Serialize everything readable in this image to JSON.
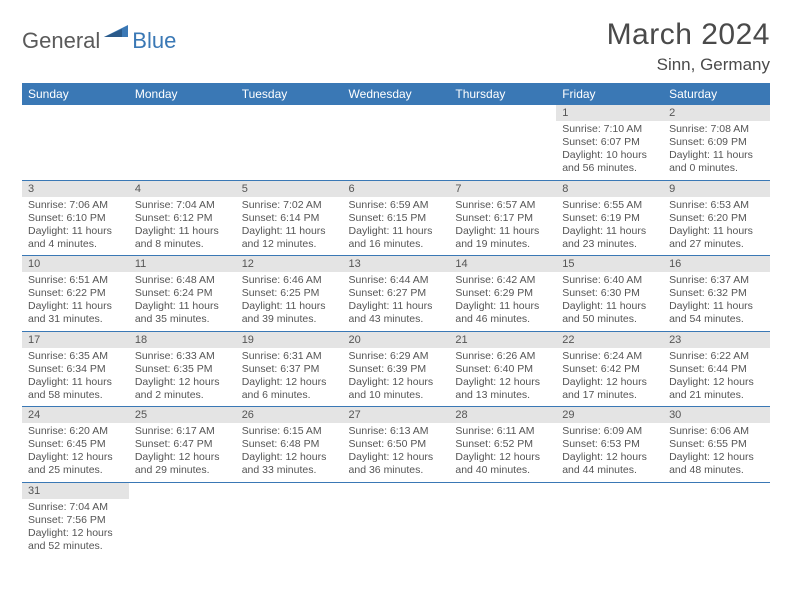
{
  "logo": {
    "general": "General",
    "blue": "Blue"
  },
  "header": {
    "title": "March 2024",
    "location": "Sinn, Germany"
  },
  "colors": {
    "header_bg": "#3a78b5",
    "header_text": "#ffffff",
    "daynum_bg": "#e4e4e4",
    "cell_border": "#3a78b5",
    "body_text": "#555555",
    "title_text": "#4a4a4a"
  },
  "columns": [
    "Sunday",
    "Monday",
    "Tuesday",
    "Wednesday",
    "Thursday",
    "Friday",
    "Saturday"
  ],
  "weeks": [
    [
      null,
      null,
      null,
      null,
      null,
      {
        "n": "1",
        "sunrise": "Sunrise: 7:10 AM",
        "sunset": "Sunset: 6:07 PM",
        "daylight": "Daylight: 10 hours and 56 minutes."
      },
      {
        "n": "2",
        "sunrise": "Sunrise: 7:08 AM",
        "sunset": "Sunset: 6:09 PM",
        "daylight": "Daylight: 11 hours and 0 minutes."
      }
    ],
    [
      {
        "n": "3",
        "sunrise": "Sunrise: 7:06 AM",
        "sunset": "Sunset: 6:10 PM",
        "daylight": "Daylight: 11 hours and 4 minutes."
      },
      {
        "n": "4",
        "sunrise": "Sunrise: 7:04 AM",
        "sunset": "Sunset: 6:12 PM",
        "daylight": "Daylight: 11 hours and 8 minutes."
      },
      {
        "n": "5",
        "sunrise": "Sunrise: 7:02 AM",
        "sunset": "Sunset: 6:14 PM",
        "daylight": "Daylight: 11 hours and 12 minutes."
      },
      {
        "n": "6",
        "sunrise": "Sunrise: 6:59 AM",
        "sunset": "Sunset: 6:15 PM",
        "daylight": "Daylight: 11 hours and 16 minutes."
      },
      {
        "n": "7",
        "sunrise": "Sunrise: 6:57 AM",
        "sunset": "Sunset: 6:17 PM",
        "daylight": "Daylight: 11 hours and 19 minutes."
      },
      {
        "n": "8",
        "sunrise": "Sunrise: 6:55 AM",
        "sunset": "Sunset: 6:19 PM",
        "daylight": "Daylight: 11 hours and 23 minutes."
      },
      {
        "n": "9",
        "sunrise": "Sunrise: 6:53 AM",
        "sunset": "Sunset: 6:20 PM",
        "daylight": "Daylight: 11 hours and 27 minutes."
      }
    ],
    [
      {
        "n": "10",
        "sunrise": "Sunrise: 6:51 AM",
        "sunset": "Sunset: 6:22 PM",
        "daylight": "Daylight: 11 hours and 31 minutes."
      },
      {
        "n": "11",
        "sunrise": "Sunrise: 6:48 AM",
        "sunset": "Sunset: 6:24 PM",
        "daylight": "Daylight: 11 hours and 35 minutes."
      },
      {
        "n": "12",
        "sunrise": "Sunrise: 6:46 AM",
        "sunset": "Sunset: 6:25 PM",
        "daylight": "Daylight: 11 hours and 39 minutes."
      },
      {
        "n": "13",
        "sunrise": "Sunrise: 6:44 AM",
        "sunset": "Sunset: 6:27 PM",
        "daylight": "Daylight: 11 hours and 43 minutes."
      },
      {
        "n": "14",
        "sunrise": "Sunrise: 6:42 AM",
        "sunset": "Sunset: 6:29 PM",
        "daylight": "Daylight: 11 hours and 46 minutes."
      },
      {
        "n": "15",
        "sunrise": "Sunrise: 6:40 AM",
        "sunset": "Sunset: 6:30 PM",
        "daylight": "Daylight: 11 hours and 50 minutes."
      },
      {
        "n": "16",
        "sunrise": "Sunrise: 6:37 AM",
        "sunset": "Sunset: 6:32 PM",
        "daylight": "Daylight: 11 hours and 54 minutes."
      }
    ],
    [
      {
        "n": "17",
        "sunrise": "Sunrise: 6:35 AM",
        "sunset": "Sunset: 6:34 PM",
        "daylight": "Daylight: 11 hours and 58 minutes."
      },
      {
        "n": "18",
        "sunrise": "Sunrise: 6:33 AM",
        "sunset": "Sunset: 6:35 PM",
        "daylight": "Daylight: 12 hours and 2 minutes."
      },
      {
        "n": "19",
        "sunrise": "Sunrise: 6:31 AM",
        "sunset": "Sunset: 6:37 PM",
        "daylight": "Daylight: 12 hours and 6 minutes."
      },
      {
        "n": "20",
        "sunrise": "Sunrise: 6:29 AM",
        "sunset": "Sunset: 6:39 PM",
        "daylight": "Daylight: 12 hours and 10 minutes."
      },
      {
        "n": "21",
        "sunrise": "Sunrise: 6:26 AM",
        "sunset": "Sunset: 6:40 PM",
        "daylight": "Daylight: 12 hours and 13 minutes."
      },
      {
        "n": "22",
        "sunrise": "Sunrise: 6:24 AM",
        "sunset": "Sunset: 6:42 PM",
        "daylight": "Daylight: 12 hours and 17 minutes."
      },
      {
        "n": "23",
        "sunrise": "Sunrise: 6:22 AM",
        "sunset": "Sunset: 6:44 PM",
        "daylight": "Daylight: 12 hours and 21 minutes."
      }
    ],
    [
      {
        "n": "24",
        "sunrise": "Sunrise: 6:20 AM",
        "sunset": "Sunset: 6:45 PM",
        "daylight": "Daylight: 12 hours and 25 minutes."
      },
      {
        "n": "25",
        "sunrise": "Sunrise: 6:17 AM",
        "sunset": "Sunset: 6:47 PM",
        "daylight": "Daylight: 12 hours and 29 minutes."
      },
      {
        "n": "26",
        "sunrise": "Sunrise: 6:15 AM",
        "sunset": "Sunset: 6:48 PM",
        "daylight": "Daylight: 12 hours and 33 minutes."
      },
      {
        "n": "27",
        "sunrise": "Sunrise: 6:13 AM",
        "sunset": "Sunset: 6:50 PM",
        "daylight": "Daylight: 12 hours and 36 minutes."
      },
      {
        "n": "28",
        "sunrise": "Sunrise: 6:11 AM",
        "sunset": "Sunset: 6:52 PM",
        "daylight": "Daylight: 12 hours and 40 minutes."
      },
      {
        "n": "29",
        "sunrise": "Sunrise: 6:09 AM",
        "sunset": "Sunset: 6:53 PM",
        "daylight": "Daylight: 12 hours and 44 minutes."
      },
      {
        "n": "30",
        "sunrise": "Sunrise: 6:06 AM",
        "sunset": "Sunset: 6:55 PM",
        "daylight": "Daylight: 12 hours and 48 minutes."
      }
    ],
    [
      {
        "n": "31",
        "sunrise": "Sunrise: 7:04 AM",
        "sunset": "Sunset: 7:56 PM",
        "daylight": "Daylight: 12 hours and 52 minutes."
      },
      null,
      null,
      null,
      null,
      null,
      null
    ]
  ]
}
